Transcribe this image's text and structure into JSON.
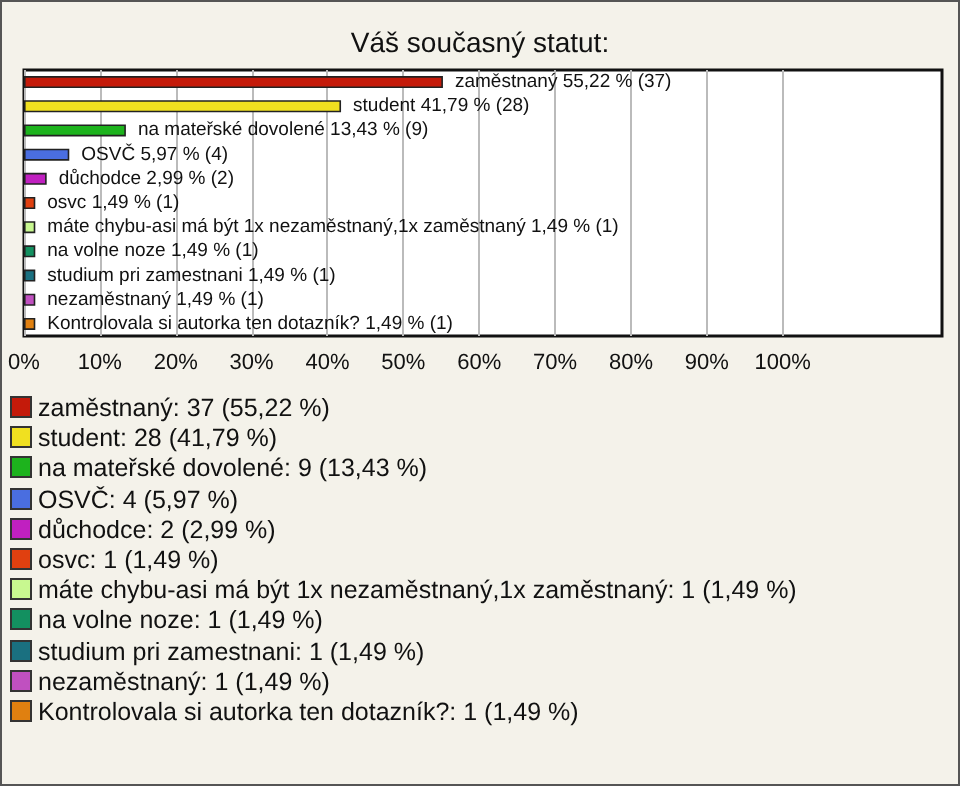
{
  "chart_data": {
    "type": "bar",
    "orientation": "horizontal",
    "title": "Váš současný statut:",
    "categories": [
      null,
      null,
      null,
      null,
      null,
      null,
      null,
      null,
      null,
      null,
      null
    ],
    "values": [
      55.22,
      41.79,
      13.43,
      5.97,
      2.99,
      1.49,
      1.49,
      1.49,
      1.49,
      1.49,
      1.49
    ],
    "colors": [
      "#c41a0a",
      "#f0e020",
      "#1db31d",
      "#4a6ee0",
      "#c020c0",
      "#e04010",
      "#c8f890",
      "#139060",
      "#1a7080",
      "#c050c0",
      "#e08010"
    ],
    "value_labels": [
      "zaměstnaný 55,22 % (37)",
      "student 41,79 % (28)",
      "na mateřské dovolené 13,43 % (9)",
      "OSVČ 5,97 % (4)",
      "důchodce 2,99 % (2)",
      "osvc 1,49 % (1)",
      "máte chybu-asi má být 1x nezaměstnaný,1x zaměstnaný 1,49 % (1)",
      "na volne noze 1,49 % (1)",
      "studium pri zamestnani 1,49 % (1)",
      "nezaměstnaný 1,49 % (1)",
      "Kontrolovala si autorka ten dotazník? 1,49 % (1)"
    ],
    "xlim": [
      0,
      121
    ],
    "xticks": [
      {
        "value": 0,
        "label": "0%"
      },
      {
        "value": 10,
        "label": "10%"
      },
      {
        "value": 20,
        "label": "20%"
      },
      {
        "value": 30,
        "label": "30%"
      },
      {
        "value": 40,
        "label": "40%"
      },
      {
        "value": 50,
        "label": "50%"
      },
      {
        "value": 60,
        "label": "60%"
      },
      {
        "value": 70,
        "label": "70%"
      },
      {
        "value": 80,
        "label": "80%"
      },
      {
        "value": 90,
        "label": "90%"
      },
      {
        "value": 100,
        "label": "100%"
      }
    ],
    "grid": "x",
    "annotations": [
      "zaměstnaný: 37 (55,22 %)",
      "student: 28 (41,79 %)",
      "na mateřské dovolené: 9 (13,43 %)",
      "OSVČ: 4 (5,97 %)",
      "důchodce: 2 (2,99 %)",
      "osvc: 1 (1,49 %)",
      "máte chybu-asi má být 1x nezaměstnaný,1x zaměstnaný: 1 (1,49 %)",
      "na volne noze: 1 (1,49 %)",
      "studium pri zamestnani: 1 (1,49 %)",
      "nezaměstnaný: 1 (1,49 %)",
      "Kontrolovala si autorka ten dotazník?: 1 (1,49 %)"
    ]
  }
}
